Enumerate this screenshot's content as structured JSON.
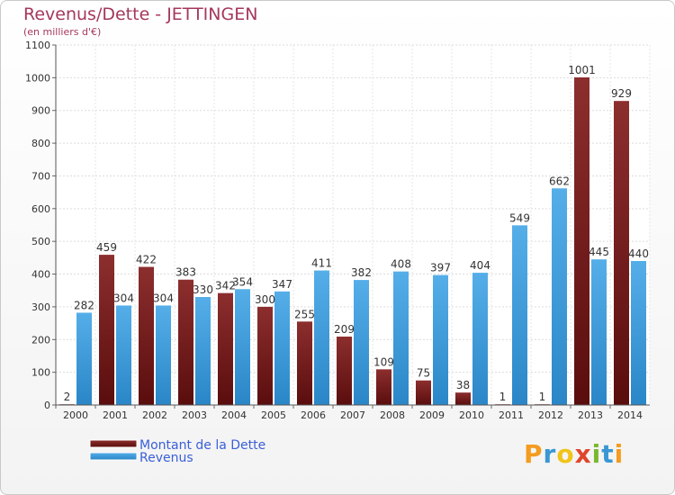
{
  "chart_data": {
    "type": "bar",
    "title": "Revenus/Dette - JETTINGEN",
    "subtitle": "(en milliers d'€)",
    "categories": [
      "2000",
      "2001",
      "2002",
      "2003",
      "2004",
      "2005",
      "2006",
      "2007",
      "2008",
      "2009",
      "2010",
      "2011",
      "2012",
      "2013",
      "2014"
    ],
    "series": [
      {
        "name": "Montant de la Dette",
        "color": "#7a1c1c",
        "values": [
          2,
          459,
          422,
          383,
          342,
          300,
          255,
          209,
          109,
          75,
          38,
          1,
          1,
          1001,
          929
        ],
        "labels": [
          "2",
          "459",
          "422",
          "383",
          "342",
          "300",
          "255",
          "209",
          "109",
          "75",
          "38",
          "1",
          "1",
          "1001",
          "929"
        ]
      },
      {
        "name": "Revenus",
        "color": "#3d9ad9",
        "values": [
          282,
          304,
          304,
          330,
          354,
          347,
          411,
          382,
          408,
          397,
          404,
          549,
          662,
          445,
          440
        ],
        "labels": [
          "282",
          "304",
          "304",
          "330",
          "354",
          "347",
          "411",
          "382",
          "408",
          "397",
          "404",
          "549",
          "662",
          "445",
          "440"
        ]
      }
    ],
    "ylim": [
      0,
      1100
    ],
    "yticks": [
      "0",
      "100",
      "200",
      "300",
      "400",
      "500",
      "600",
      "700",
      "800",
      "900",
      "1000",
      "1100"
    ],
    "grid": true,
    "legend_position": "bottom-left"
  },
  "brand": {
    "letters": [
      "P",
      "r",
      "o",
      "x",
      "i",
      "t",
      "i"
    ],
    "colors": [
      "#f39c1f",
      "#3a97d4",
      "#f0c419",
      "#e0452b",
      "#7cb72e",
      "#3a97d4",
      "#f39c1f"
    ]
  }
}
